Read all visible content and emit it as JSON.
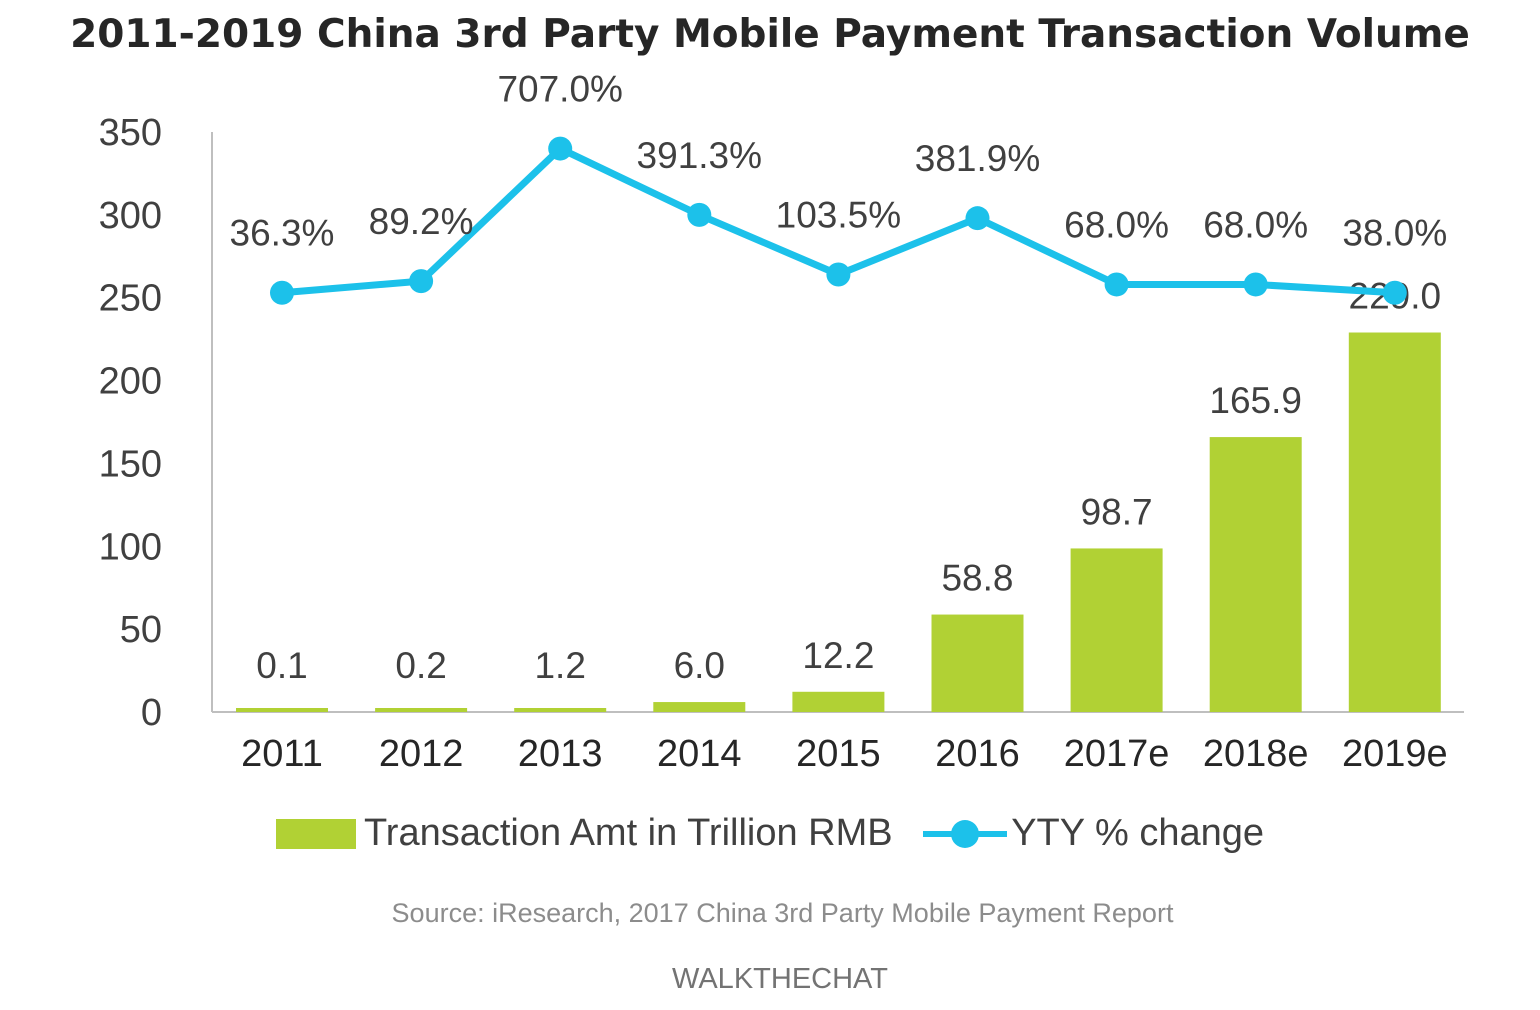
{
  "colors": {
    "bar": "#b1d134",
    "line": "#1cc1ea",
    "text": "#404040",
    "axis": "#bfbfbf"
  },
  "chart_data": {
    "type": "bar",
    "title": "2011-2019 China 3rd Party Mobile Payment Transaction Volume",
    "categories": [
      "2011",
      "2012",
      "2013",
      "2014",
      "2015",
      "2016",
      "2017e",
      "2018e",
      "2019e"
    ],
    "series": [
      {
        "name": "Transaction Amt in Trillion RMB",
        "type": "bar",
        "values": [
          0.1,
          0.2,
          1.2,
          6.0,
          12.2,
          58.8,
          98.7,
          165.9,
          229.0
        ],
        "labels": [
          "0.1",
          "0.2",
          "1.2",
          "6.0",
          "12.2",
          "58.8",
          "98.7",
          "165.9",
          "229.0"
        ]
      },
      {
        "name": "YTY % change",
        "type": "line",
        "plotted_values": [
          253,
          260,
          340,
          300,
          264,
          298,
          258,
          258,
          253
        ],
        "labels": [
          "36.3%",
          "89.2%",
          "707.0%",
          "391.3%",
          "103.5%",
          "381.9%",
          "68.0%",
          "68.0%",
          "38.0%"
        ]
      }
    ],
    "yticks": [
      "350",
      "300",
      "250",
      "200",
      "150",
      "100",
      "50",
      "0"
    ],
    "ylim": [
      0,
      350
    ],
    "grid": false,
    "legend_position": "bottom"
  },
  "source": "Source: iResearch, 2017 China 3rd Party Mobile Payment Report",
  "brand": "WALKTHECHAT"
}
